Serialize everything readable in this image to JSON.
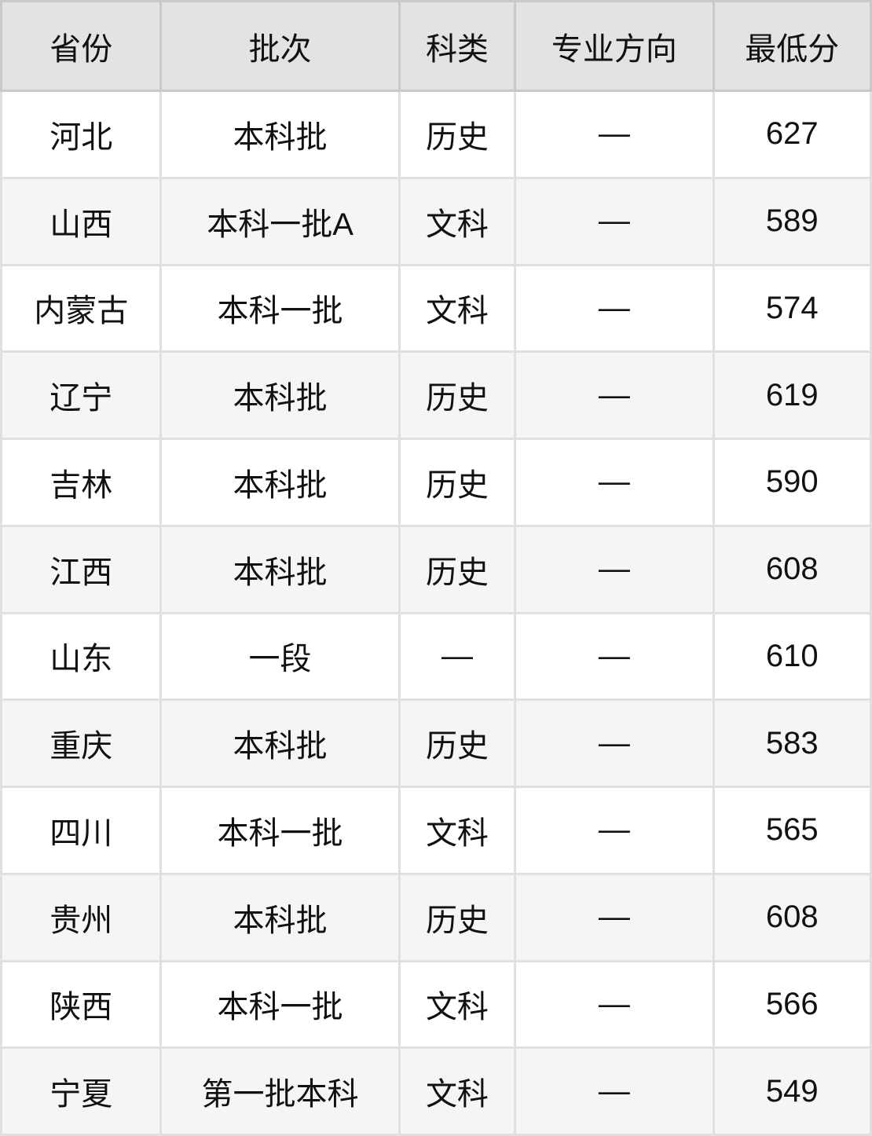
{
  "chart_data": {
    "type": "table",
    "columns": [
      "省份",
      "批次",
      "科类",
      "专业方向",
      "最低分"
    ],
    "rows": [
      [
        "河北",
        "本科批",
        "历史",
        "—",
        "627"
      ],
      [
        "山西",
        "本科一批A",
        "文科",
        "—",
        "589"
      ],
      [
        "内蒙古",
        "本科一批",
        "文科",
        "—",
        "574"
      ],
      [
        "辽宁",
        "本科批",
        "历史",
        "—",
        "619"
      ],
      [
        "吉林",
        "本科批",
        "历史",
        "—",
        "590"
      ],
      [
        "江西",
        "本科批",
        "历史",
        "—",
        "608"
      ],
      [
        "山东",
        "一段",
        "—",
        "—",
        "610"
      ],
      [
        "重庆",
        "本科批",
        "历史",
        "—",
        "583"
      ],
      [
        "四川",
        "本科一批",
        "文科",
        "—",
        "565"
      ],
      [
        "贵州",
        "本科批",
        "历史",
        "—",
        "608"
      ],
      [
        "陕西",
        "本科一批",
        "文科",
        "—",
        "566"
      ],
      [
        "宁夏",
        "第一批本科",
        "文科",
        "—",
        "549"
      ]
    ],
    "layout_hints": {
      "header_row": true,
      "zebra_striping": "even-rows-shaded",
      "all_cells_centered": true
    }
  },
  "colors": {
    "header_bg": "#e3e3e3",
    "row_bg": "#ffffff",
    "row_alt_bg": "#f5f5f5",
    "grid_line": "#e0e0e0",
    "grid_line_dark": "#c9c9c9",
    "text": "#111111"
  }
}
